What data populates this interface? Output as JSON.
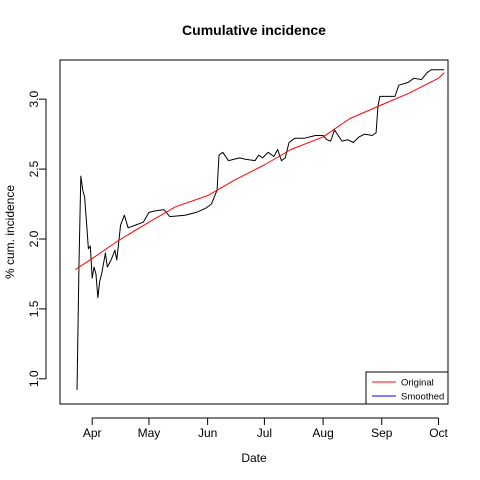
{
  "chart_data": {
    "type": "line",
    "title": "Cumulative incidence",
    "xlabel": "Date",
    "ylabel": "% cum. incidence",
    "x_axis": "date",
    "xlim": [
      "2020-03-15",
      "2020-10-06"
    ],
    "ylim": [
      0.82,
      3.28
    ],
    "x_ticks": [
      {
        "date": "2020-04-01",
        "label": "Apr"
      },
      {
        "date": "2020-05-01",
        "label": "May"
      },
      {
        "date": "2020-06-01",
        "label": "Jun"
      },
      {
        "date": "2020-07-01",
        "label": "Jul"
      },
      {
        "date": "2020-08-01",
        "label": "Aug"
      },
      {
        "date": "2020-09-01",
        "label": "Sep"
      },
      {
        "date": "2020-10-01",
        "label": "Oct"
      }
    ],
    "y_ticks": [
      1.0,
      1.5,
      2.0,
      2.5,
      3.0
    ],
    "y_tick_labels": [
      "1.0",
      "1.5",
      "2.0",
      "2.5",
      "3.0"
    ],
    "grid": false,
    "legend_position": "bottom-right",
    "legend": [
      {
        "label": "Original",
        "color": "#ff0000"
      },
      {
        "label": "Smoothed",
        "color": "#0000ff"
      }
    ],
    "series": [
      {
        "color": "#000000",
        "points": [
          [
            "2020-03-24",
            0.92
          ],
          [
            "2020-03-25",
            1.8
          ],
          [
            "2020-03-26",
            2.45
          ],
          [
            "2020-03-27",
            2.35
          ],
          [
            "2020-03-28",
            2.3
          ],
          [
            "2020-03-29",
            2.12
          ],
          [
            "2020-03-30",
            1.93
          ],
          [
            "2020-03-31",
            1.95
          ],
          [
            "2020-04-01",
            1.72
          ],
          [
            "2020-04-02",
            1.8
          ],
          [
            "2020-04-03",
            1.75
          ],
          [
            "2020-04-04",
            1.58
          ],
          [
            "2020-04-05",
            1.7
          ],
          [
            "2020-04-06",
            1.75
          ],
          [
            "2020-04-08",
            1.9
          ],
          [
            "2020-04-09",
            1.8
          ],
          [
            "2020-04-11",
            1.85
          ],
          [
            "2020-04-13",
            1.92
          ],
          [
            "2020-04-14",
            1.85
          ],
          [
            "2020-04-16",
            2.1
          ],
          [
            "2020-04-18",
            2.17
          ],
          [
            "2020-04-20",
            2.08
          ],
          [
            "2020-04-24",
            2.1
          ],
          [
            "2020-04-28",
            2.12
          ],
          [
            "2020-05-01",
            2.19
          ],
          [
            "2020-05-04",
            2.2
          ],
          [
            "2020-05-09",
            2.21
          ],
          [
            "2020-05-12",
            2.16
          ],
          [
            "2020-05-20",
            2.17
          ],
          [
            "2020-05-26",
            2.19
          ],
          [
            "2020-05-31",
            2.22
          ],
          [
            "2020-06-03",
            2.25
          ],
          [
            "2020-06-06",
            2.35
          ],
          [
            "2020-06-07",
            2.6
          ],
          [
            "2020-06-09",
            2.62
          ],
          [
            "2020-06-12",
            2.56
          ],
          [
            "2020-06-15",
            2.57
          ],
          [
            "2020-06-18",
            2.58
          ],
          [
            "2020-06-21",
            2.57
          ],
          [
            "2020-06-26",
            2.56
          ],
          [
            "2020-06-28",
            2.6
          ],
          [
            "2020-06-30",
            2.58
          ],
          [
            "2020-07-03",
            2.62
          ],
          [
            "2020-07-06",
            2.59
          ],
          [
            "2020-07-08",
            2.64
          ],
          [
            "2020-07-10",
            2.56
          ],
          [
            "2020-07-12",
            2.58
          ],
          [
            "2020-07-14",
            2.69
          ],
          [
            "2020-07-17",
            2.72
          ],
          [
            "2020-07-22",
            2.72
          ],
          [
            "2020-07-25",
            2.73
          ],
          [
            "2020-07-28",
            2.74
          ],
          [
            "2020-08-01",
            2.74
          ],
          [
            "2020-08-03",
            2.71
          ],
          [
            "2020-08-05",
            2.7
          ],
          [
            "2020-08-07",
            2.78
          ],
          [
            "2020-08-11",
            2.7
          ],
          [
            "2020-08-14",
            2.71
          ],
          [
            "2020-08-17",
            2.69
          ],
          [
            "2020-08-20",
            2.73
          ],
          [
            "2020-08-23",
            2.75
          ],
          [
            "2020-08-27",
            2.74
          ],
          [
            "2020-08-29",
            2.76
          ],
          [
            "2020-08-30",
            2.95
          ],
          [
            "2020-08-31",
            3.02
          ],
          [
            "2020-09-04",
            3.02
          ],
          [
            "2020-09-08",
            3.02
          ],
          [
            "2020-09-10",
            3.1
          ],
          [
            "2020-09-15",
            3.12
          ],
          [
            "2020-09-18",
            3.15
          ],
          [
            "2020-09-22",
            3.14
          ],
          [
            "2020-09-25",
            3.19
          ],
          [
            "2020-09-27",
            3.21
          ],
          [
            "2020-10-02",
            3.21
          ],
          [
            "2020-10-04",
            3.21
          ]
        ]
      },
      {
        "color": "#ff0000",
        "points": [
          [
            "2020-03-23",
            1.78
          ],
          [
            "2020-04-01",
            1.86
          ],
          [
            "2020-04-15",
            1.99
          ],
          [
            "2020-05-01",
            2.12
          ],
          [
            "2020-05-15",
            2.23
          ],
          [
            "2020-06-01",
            2.31
          ],
          [
            "2020-06-15",
            2.42
          ],
          [
            "2020-07-01",
            2.53
          ],
          [
            "2020-07-15",
            2.64
          ],
          [
            "2020-08-01",
            2.73
          ],
          [
            "2020-08-15",
            2.86
          ],
          [
            "2020-09-01",
            2.96
          ],
          [
            "2020-09-15",
            3.04
          ],
          [
            "2020-10-01",
            3.15
          ],
          [
            "2020-10-04",
            3.19
          ]
        ]
      }
    ]
  }
}
